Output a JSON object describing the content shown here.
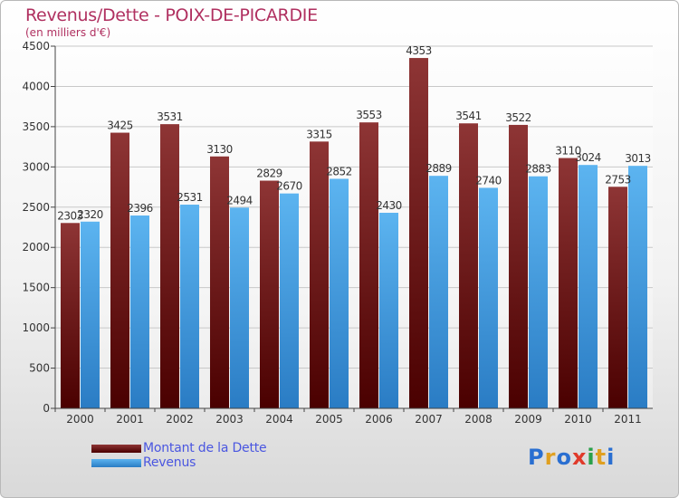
{
  "header": {
    "title": "Revenus/Dette - POIX-DE-PICARDIE",
    "subtitle": "(en milliers d'€)"
  },
  "legend": {
    "items": [
      {
        "label": "Montant de la Dette",
        "color": "#7a1e1e"
      },
      {
        "label": "Revenus",
        "color": "#3a9ee6"
      }
    ]
  },
  "logo": {
    "text": "Proxiti",
    "colors": [
      "#2a6fd1",
      "#e0a020",
      "#2a6fd1",
      "#e03a2a",
      "#2aa04a",
      "#e0a020",
      "#2a6fd1"
    ]
  },
  "chart_data": {
    "type": "bar",
    "title": "Revenus/Dette - POIX-DE-PICARDIE",
    "subtitle": "(en milliers d'€)",
    "categories": [
      "2000",
      "2001",
      "2002",
      "2003",
      "2004",
      "2005",
      "2006",
      "2007",
      "2008",
      "2009",
      "2010",
      "2011"
    ],
    "series": [
      {
        "name": "Montant de la Dette",
        "color": "#7a1e1e",
        "values": [
          2303,
          3425,
          3531,
          3130,
          2829,
          3315,
          3553,
          4353,
          3541,
          3522,
          3110,
          2753
        ]
      },
      {
        "name": "Revenus",
        "color": "#3a9ee6",
        "values": [
          2320,
          2396,
          2531,
          2494,
          2670,
          2852,
          2430,
          2889,
          2740,
          2883,
          3024,
          3013
        ]
      }
    ],
    "yticks": [
      0,
      500,
      1000,
      1500,
      2000,
      2500,
      3000,
      3500,
      4000,
      4500
    ],
    "ylim": [
      0,
      4500
    ],
    "grid": true,
    "legend_position": "bottom-left"
  }
}
